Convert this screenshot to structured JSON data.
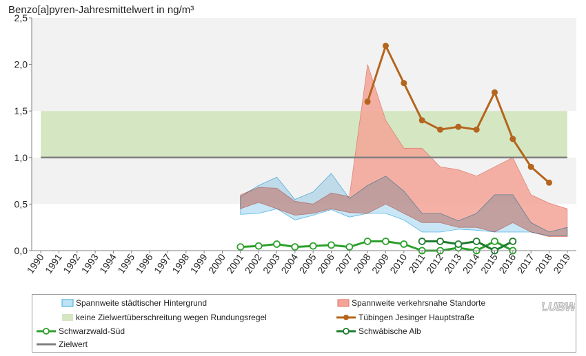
{
  "chart_data": {
    "type": "area",
    "title": "Benzo[a]pyren-Jahresmittelwert in ng/m³",
    "xlabel": "",
    "ylabel": "",
    "x": [
      1990,
      1991,
      1992,
      1993,
      1994,
      1995,
      1996,
      1997,
      1998,
      1999,
      2000,
      2001,
      2002,
      2003,
      2004,
      2005,
      2006,
      2007,
      2008,
      2009,
      2010,
      2011,
      2012,
      2013,
      2014,
      2015,
      2016,
      2017,
      2018,
      2019
    ],
    "x_tick_labels": [
      "1990",
      "1991",
      "1992",
      "1993",
      "1994",
      "1995",
      "1996",
      "1997",
      "1998",
      "1999",
      "2000",
      "2001",
      "2002",
      "2003",
      "2004",
      "2005",
      "2006",
      "2007",
      "2008",
      "2009",
      "2010",
      "2011",
      "2012",
      "2013",
      "2014",
      "2015",
      "2016",
      "2017",
      "2018",
      "2019"
    ],
    "ylim": [
      0,
      2.5
    ],
    "y_ticks": [
      0,
      0.5,
      1.0,
      1.5,
      2.0,
      2.5
    ],
    "y_tick_labels": [
      "0,0",
      "0,5",
      "1,0",
      "1,5",
      "2,0",
      "2,5"
    ],
    "grid": "horizontal bands",
    "bands": [
      {
        "from": 0.5,
        "to": 1.0,
        "color": "#f2f2f2"
      },
      {
        "from": 1.5,
        "to": 2.0,
        "color": "#f2f2f2"
      },
      {
        "from": 2.0,
        "to": 2.5,
        "color": "#f2f2f2"
      }
    ],
    "series": [
      {
        "name": "keine Zielwertüberschreitung wegen Rundungsregel",
        "kind": "band",
        "x": [
          1990,
          2019
        ],
        "low": [
          1.0,
          1.0
        ],
        "high": [
          1.5,
          1.5
        ],
        "color": "#d5e6c2"
      },
      {
        "name": "Spannweite verkehrsnahe Standorte",
        "kind": "range",
        "x": [
          2001,
          2002,
          2003,
          2004,
          2005,
          2006,
          2007,
          2008,
          2009,
          2010,
          2011,
          2012,
          2013,
          2014,
          2015,
          2016,
          2017,
          2018,
          2019
        ],
        "low": [
          0.45,
          0.52,
          0.45,
          0.38,
          0.4,
          0.45,
          0.41,
          0.4,
          0.5,
          0.4,
          0.3,
          0.3,
          0.25,
          0.25,
          0.2,
          0.3,
          0.2,
          0.15,
          0.15
        ],
        "high": [
          0.6,
          0.68,
          0.67,
          0.53,
          0.5,
          0.62,
          0.58,
          2.0,
          1.4,
          1.1,
          1.1,
          0.9,
          0.87,
          0.8,
          0.9,
          1.0,
          0.6,
          0.51,
          0.45
        ],
        "color": "#f4a397",
        "stroke": "#d97366"
      },
      {
        "name": "Spannweite städtischer Hintergrund",
        "kind": "range",
        "x": [
          2001,
          2002,
          2003,
          2004,
          2005,
          2006,
          2007,
          2008,
          2009,
          2010,
          2011,
          2012,
          2013,
          2014,
          2015,
          2016,
          2017,
          2018,
          2019
        ],
        "low": [
          0.39,
          0.4,
          0.45,
          0.33,
          0.38,
          0.44,
          0.36,
          0.4,
          0.4,
          0.33,
          0.2,
          0.2,
          0.23,
          0.22,
          0.2,
          0.2,
          0.2,
          0.16,
          0.16
        ],
        "high": [
          0.58,
          0.7,
          0.79,
          0.55,
          0.63,
          0.83,
          0.56,
          0.7,
          0.8,
          0.64,
          0.4,
          0.4,
          0.32,
          0.4,
          0.6,
          0.6,
          0.3,
          0.2,
          0.25
        ],
        "color": "#bfe2f5",
        "stroke": "#3aa9de"
      },
      {
        "name": "Zielwert",
        "kind": "hline",
        "x": [
          1990,
          2019
        ],
        "y": [
          1.0,
          1.0
        ],
        "color": "#7f7f7f"
      },
      {
        "name": "Tübingen Jesinger Hauptstraße",
        "kind": "line",
        "x": [
          2008,
          2009,
          2010,
          2011,
          2012,
          2013,
          2014,
          2015,
          2016,
          2017,
          2018
        ],
        "y": [
          1.6,
          2.2,
          1.8,
          1.4,
          1.3,
          1.33,
          1.3,
          1.7,
          1.2,
          0.9,
          0.73
        ],
        "color": "#b4651e",
        "marker": "filled"
      },
      {
        "name": "Schwarzwald-Süd",
        "kind": "line",
        "x": [
          2001,
          2002,
          2003,
          2004,
          2005,
          2006,
          2007,
          2008,
          2009,
          2010,
          2011,
          2012,
          2013,
          2014,
          2015,
          2016
        ],
        "y": [
          0.04,
          0.05,
          0.07,
          0.04,
          0.05,
          0.06,
          0.04,
          0.1,
          0.1,
          0.07,
          0.0,
          0.0,
          0.03,
          0.0,
          0.1,
          0.0
        ],
        "color": "#2ca02c",
        "marker": "open"
      },
      {
        "name": "Schwäbische Alb",
        "kind": "line",
        "x": [
          2011,
          2012,
          2013,
          2014,
          2015,
          2016
        ],
        "y": [
          0.1,
          0.1,
          0.07,
          0.1,
          0.0,
          0.1
        ],
        "color": "#1e7b2e",
        "marker": "open"
      }
    ],
    "legend": {
      "placement": "bottom",
      "entries": [
        "Spannweite städtischer Hintergrund",
        "Spannweite verkehrsnahe Standorte",
        "keine Zielwertüberschreitung wegen Rundungsregel",
        "Tübingen Jesinger Hauptstraße",
        "Schwarzwald-Süd",
        "Schwäbische Alb",
        "Zielwert"
      ]
    }
  },
  "logo": {
    "text": "LUBW"
  }
}
